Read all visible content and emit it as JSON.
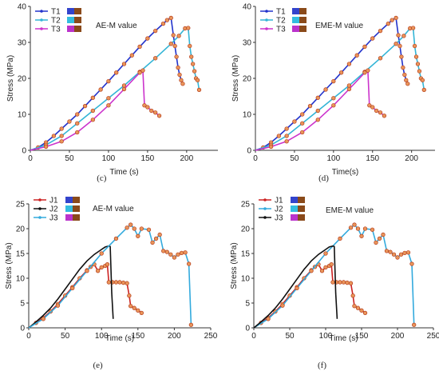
{
  "chart_data": [
    {
      "type": "line",
      "panel_label": "(c)",
      "xlabel": "Time (s)",
      "ylabel": "Stress (MPa)",
      "xlim": [
        0,
        240
      ],
      "ylim": [
        0,
        40
      ],
      "xticks": [
        "0",
        "50",
        "100",
        "150",
        "200"
      ],
      "yticks": [
        "0",
        "10",
        "20",
        "30",
        "40"
      ],
      "annotation": "AE-M value",
      "legend_position": "top-left",
      "series": [
        {
          "name": "T1",
          "color": "#2233cc",
          "marker": "dot",
          "x": [
            0,
            10,
            20,
            30,
            40,
            50,
            60,
            70,
            80,
            90,
            100,
            110,
            120,
            130,
            140,
            150,
            160,
            170,
            175,
            180,
            183,
            185,
            187,
            189,
            191,
            193,
            195
          ],
          "y": [
            0,
            0.8,
            2.2,
            4,
            6,
            8,
            10,
            12.3,
            14.6,
            16.9,
            19.2,
            21.6,
            24,
            26.4,
            28.8,
            31.1,
            33.2,
            35.2,
            36.2,
            36.8,
            32,
            29,
            26,
            23,
            21,
            19.5,
            18.5
          ]
        },
        {
          "name": "T2",
          "color": "#33b5d6",
          "marker": "tri",
          "x": [
            0,
            20,
            40,
            60,
            80,
            100,
            120,
            140,
            160,
            180,
            190,
            198,
            202,
            204,
            206,
            208,
            210,
            212,
            214,
            216
          ],
          "y": [
            0,
            1.5,
            4,
            7.5,
            11,
            14.5,
            18,
            21.8,
            25.6,
            29.6,
            31.8,
            33.9,
            34,
            29,
            26,
            24,
            22,
            20,
            19.5,
            16.8
          ]
        },
        {
          "name": "T3",
          "color": "#cc33cc",
          "marker": "tri",
          "x": [
            0,
            20,
            40,
            60,
            80,
            100,
            120,
            140,
            144,
            146,
            150,
            155,
            160,
            165
          ],
          "y": [
            0,
            1,
            2.5,
            5,
            8.5,
            12.5,
            17,
            21.6,
            22.2,
            12.5,
            12,
            11,
            10.5,
            9.6
          ]
        }
      ]
    },
    {
      "type": "line",
      "panel_label": "(d)",
      "xlabel": "Time(s)",
      "ylabel": "Stress (MPa)",
      "xlim": [
        0,
        230
      ],
      "ylim": [
        0,
        40
      ],
      "xticks": [
        "0",
        "50",
        "100",
        "150",
        "200"
      ],
      "yticks": [
        "0",
        "10",
        "20",
        "30",
        "40"
      ],
      "annotation": "EME-M value",
      "legend_position": "top-left",
      "series": [
        {
          "name": "T1",
          "color": "#2233cc",
          "marker": "dot",
          "x": [
            0,
            10,
            20,
            30,
            40,
            50,
            60,
            70,
            80,
            90,
            100,
            110,
            120,
            130,
            140,
            150,
            160,
            170,
            175,
            180,
            183,
            185,
            187,
            189,
            191,
            193,
            195
          ],
          "y": [
            0,
            0.8,
            2.2,
            4,
            6,
            8,
            10,
            12.3,
            14.6,
            16.9,
            19.2,
            21.6,
            24,
            26.4,
            28.8,
            31.1,
            33.2,
            35.2,
            36.2,
            36.8,
            32,
            29,
            26,
            23,
            21,
            19.5,
            18.5
          ]
        },
        {
          "name": "T2",
          "color": "#33b5d6",
          "marker": "tri",
          "x": [
            0,
            20,
            40,
            60,
            80,
            100,
            120,
            140,
            160,
            180,
            190,
            198,
            202,
            204,
            206,
            208,
            210,
            212,
            214,
            216
          ],
          "y": [
            0,
            1.5,
            4,
            7.5,
            11,
            14.5,
            18,
            21.8,
            25.6,
            29.6,
            31.8,
            33.9,
            34,
            29,
            26,
            24,
            22,
            20,
            19.5,
            16.8
          ]
        },
        {
          "name": "T3",
          "color": "#cc33cc",
          "marker": "tri",
          "x": [
            0,
            20,
            40,
            60,
            80,
            100,
            120,
            140,
            144,
            146,
            150,
            155,
            160,
            165
          ],
          "y": [
            0,
            1,
            2.5,
            5,
            8.5,
            12.5,
            17,
            21.6,
            22.2,
            12.5,
            12,
            11,
            10.5,
            9.6
          ]
        }
      ]
    },
    {
      "type": "line",
      "panel_label": "(e)",
      "xlabel": "Time (s)",
      "ylabel": "Stress (MPa)",
      "xlim": [
        0,
        250
      ],
      "ylim": [
        0,
        25
      ],
      "xticks": [
        "0",
        "50",
        "100",
        "150",
        "200",
        "250"
      ],
      "yticks": [
        "0",
        "5",
        "10",
        "15",
        "20",
        "25"
      ],
      "annotation": "AE-M value",
      "legend_position": "top-left",
      "series": [
        {
          "name": "J1",
          "color": "#cc2222",
          "marker": "dot",
          "x": [
            0,
            10,
            20,
            30,
            40,
            50,
            60,
            70,
            80,
            85,
            90,
            95,
            100,
            105,
            108,
            110,
            115,
            120,
            125,
            130,
            135,
            138,
            140,
            145,
            150,
            155
          ],
          "y": [
            0,
            1,
            2,
            3.3,
            4.8,
            6.5,
            8.2,
            10,
            11.6,
            12.3,
            12.8,
            11.5,
            12.2,
            12.5,
            12.8,
            9.2,
            9.2,
            9.2,
            9.2,
            9.1,
            9,
            6.5,
            4.4,
            4,
            3.5,
            3
          ]
        },
        {
          "name": "J2",
          "color": "#111111",
          "marker": "line",
          "x": [
            0,
            10,
            20,
            30,
            40,
            50,
            60,
            70,
            80,
            90,
            100,
            105,
            110,
            112,
            114,
            116
          ],
          "y": [
            0,
            1.2,
            2.5,
            4,
            5.8,
            7.8,
            9.8,
            11.8,
            13.5,
            14.8,
            15.8,
            16.3,
            16.5,
            16.4,
            7,
            1.8
          ]
        },
        {
          "name": "J3",
          "color": "#33aadd",
          "marker": "dot",
          "x": [
            0,
            20,
            40,
            60,
            80,
            100,
            120,
            135,
            140,
            145,
            150,
            155,
            165,
            170,
            175,
            180,
            185,
            190,
            195,
            200,
            205,
            210,
            215,
            220,
            223
          ],
          "y": [
            0,
            1.8,
            4.5,
            8,
            11.5,
            15,
            18,
            20.2,
            20.8,
            20,
            18.5,
            20,
            19.8,
            17.2,
            18,
            18.8,
            15.5,
            15.3,
            14.8,
            14.2,
            14.8,
            15.1,
            15.2,
            12.9,
            0.6
          ]
        }
      ]
    },
    {
      "type": "line",
      "panel_label": "(f)",
      "xlabel": "Time (s)",
      "ylabel": "Stress (MPa)",
      "xlim": [
        0,
        250
      ],
      "ylim": [
        0,
        25
      ],
      "xticks": [
        "0",
        "50",
        "100",
        "150",
        "200",
        "250"
      ],
      "yticks": [
        "0",
        "5",
        "10",
        "15",
        "20",
        "25"
      ],
      "annotation": "EME-M value",
      "legend_position": "top-left",
      "series": [
        {
          "name": "J1",
          "color": "#cc2222",
          "marker": "dot",
          "x": [
            0,
            10,
            20,
            30,
            40,
            50,
            60,
            70,
            80,
            85,
            90,
            95,
            100,
            105,
            108,
            110,
            115,
            120,
            125,
            130,
            135,
            138,
            140,
            145,
            150,
            155
          ],
          "y": [
            0,
            1,
            2,
            3.3,
            4.8,
            6.5,
            8.2,
            10,
            11.6,
            12.3,
            12.8,
            11.5,
            12.2,
            12.5,
            12.8,
            9.2,
            9.2,
            9.2,
            9.2,
            9.1,
            9,
            6.5,
            4.4,
            4,
            3.5,
            3
          ]
        },
        {
          "name": "J2",
          "color": "#33aadd",
          "marker": "dot",
          "x": [
            0,
            20,
            40,
            60,
            80,
            100,
            120,
            135,
            140,
            145,
            150,
            155,
            165,
            170,
            175,
            180,
            185,
            190,
            195,
            200,
            205,
            210,
            215,
            220,
            223
          ],
          "y": [
            0,
            1.8,
            4.5,
            8,
            11.5,
            15,
            18,
            20.2,
            20.8,
            20,
            18.5,
            20,
            19.8,
            17.2,
            18,
            18.8,
            15.5,
            15.3,
            14.8,
            14.2,
            14.8,
            15.1,
            15.2,
            12.9,
            0.6
          ]
        },
        {
          "name": "J3",
          "color": "#111111",
          "marker": "line",
          "x": [
            0,
            10,
            20,
            30,
            40,
            50,
            60,
            70,
            80,
            90,
            100,
            105,
            110,
            112,
            114,
            116
          ],
          "y": [
            0,
            1.2,
            2.5,
            4,
            5.8,
            7.8,
            9.8,
            11.8,
            13.5,
            14.8,
            15.8,
            16.3,
            16.5,
            16.4,
            7,
            1.8
          ]
        }
      ]
    }
  ]
}
